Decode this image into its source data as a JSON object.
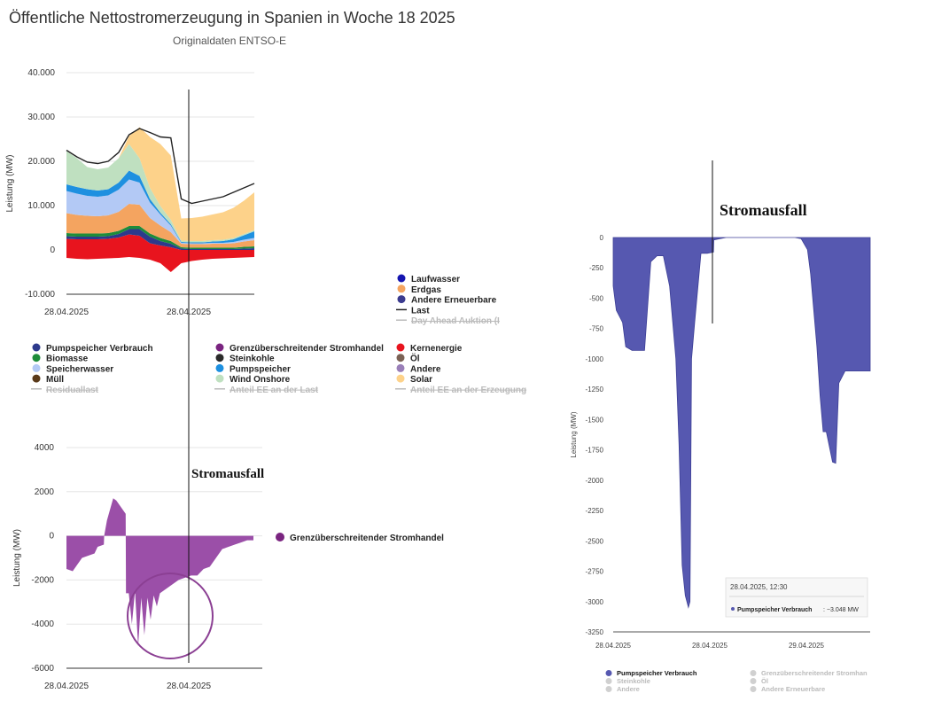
{
  "header": {
    "title": "Öffentliche Nettostromerzeugung in Spanien in Woche 18 2025",
    "subtitle": "Originaldaten ENTSO-E"
  },
  "colors": {
    "laufwasser": "#1515b0",
    "erdgas": "#f4a460",
    "andere_erneuerbare": "#3b3b8f",
    "pumpspeicher_verbrauch": "#2d3a8c",
    "biomasse": "#1e8c3a",
    "speicherwasser": "#b3c9f5",
    "muell": "#5a3a1a",
    "grenz": "#7a2480",
    "steinkohle": "#2a2a2a",
    "pumpspeicher": "#1e90e0",
    "wind_onshore": "#bfe0c0",
    "kernenergie": "#e8141e",
    "oel": "#7b6255",
    "andere": "#9a7fb8",
    "solar": "#fdd28a",
    "trade_fill": "#9b4fa8",
    "pump_fill": "#5658b0"
  },
  "chart_data": [
    {
      "type": "area",
      "name": "generation",
      "ylabel": "Leistung (MW)",
      "ylim": [
        -10000,
        40000
      ],
      "yticks": [
        "40.000",
        "30.000",
        "20.000",
        "10.000",
        "0",
        "-10.000"
      ],
      "xticks": [
        "28.04.2025",
        "28.04.2025"
      ],
      "x_hours": [
        0,
        4,
        8,
        12,
        16,
        20,
        24,
        28,
        32,
        36,
        40,
        44,
        48,
        52,
        56,
        60,
        64,
        68,
        72
      ],
      "load": [
        22500,
        21000,
        19800,
        19500,
        20000,
        22000,
        26000,
        27400,
        26500,
        25500,
        25300,
        11500,
        10500,
        11000,
        11500,
        12000,
        13000,
        14000,
        15000
      ],
      "series": [
        {
          "name": "Kernenergie",
          "color_key": "kernenergie",
          "values": [
            -1800,
            -2000,
            -2100,
            -2000,
            -1900,
            -1800,
            -1600,
            -1800,
            -2200,
            -3000,
            -5000,
            -3000,
            -2500,
            -2200,
            -2000,
            -1900,
            -1800,
            -1700,
            -1600
          ]
        },
        {
          "name": "Kernenergie",
          "color_key": "kernenergie",
          "values": [
            2500,
            2400,
            2400,
            2400,
            2500,
            2800,
            3500,
            3200,
            1500,
            1000,
            600,
            0,
            0,
            0,
            0,
            0,
            0,
            0,
            0
          ]
        },
        {
          "name": "Pumpspeicher Verbrauch",
          "color_key": "pumpspeicher_verbrauch",
          "values": [
            600,
            600,
            600,
            600,
            600,
            800,
            1200,
            1500,
            1500,
            1000,
            800,
            300,
            200,
            200,
            200,
            200,
            200,
            300,
            400
          ]
        },
        {
          "name": "Biomasse",
          "color_key": "biomasse",
          "values": [
            700,
            700,
            700,
            700,
            700,
            700,
            700,
            700,
            700,
            700,
            600,
            300,
            300,
            300,
            300,
            300,
            300,
            400,
            400
          ]
        },
        {
          "name": "Erdgas",
          "color_key": "erdgas",
          "values": [
            4500,
            4200,
            4000,
            3900,
            4000,
            4300,
            5000,
            4800,
            3500,
            2800,
            2000,
            800,
            800,
            800,
            900,
            900,
            1000,
            1200,
            1400
          ]
        },
        {
          "name": "Speicherwasser",
          "color_key": "speicherwasser",
          "values": [
            5000,
            4800,
            4500,
            4400,
            4500,
            5000,
            5500,
            5000,
            3500,
            2500,
            1500,
            200,
            200,
            200,
            200,
            200,
            300,
            400,
            500
          ]
        },
        {
          "name": "Pumpspeicher",
          "color_key": "pumpspeicher",
          "values": [
            1500,
            1500,
            1500,
            1400,
            1400,
            1600,
            2000,
            1500,
            800,
            400,
            300,
            200,
            200,
            200,
            300,
            400,
            600,
            1000,
            1500
          ]
        },
        {
          "name": "Wind Onshore",
          "color_key": "wind_onshore",
          "values": [
            7500,
            6500,
            5000,
            4800,
            4900,
            5500,
            6000,
            4000,
            2500,
            1500,
            1000,
            300,
            300,
            300,
            300,
            300,
            300,
            300,
            300
          ]
        },
        {
          "name": "Solar",
          "color_key": "solar",
          "values": [
            0,
            0,
            0,
            0,
            0,
            0,
            1800,
            7000,
            11500,
            14000,
            14500,
            5000,
            5200,
            5500,
            5800,
            6200,
            6800,
            7500,
            8500
          ]
        }
      ],
      "legend_right": [
        {
          "label": "Laufwasser",
          "type": "dot",
          "color_key": "laufwasser",
          "active": true
        },
        {
          "label": "Erdgas",
          "type": "dot",
          "color_key": "erdgas",
          "active": true
        },
        {
          "label": "Andere Erneuerbare",
          "type": "dot",
          "color_key": "andere_erneuerbare",
          "active": true
        },
        {
          "label": "Last",
          "type": "line",
          "color_key": "steinkohle",
          "active": true
        },
        {
          "label": "Day Ahead Auktion (I",
          "type": "line",
          "color_key": "",
          "active": false
        }
      ],
      "legend_bottom": [
        {
          "label": "Pumpspeicher Verbrauch",
          "type": "dot",
          "color_key": "pumpspeicher_verbrauch",
          "active": true
        },
        {
          "label": "Grenzüberschreitender Stromhandel",
          "type": "dot",
          "color_key": "grenz",
          "active": true
        },
        {
          "label": "Kernenergie",
          "type": "dot",
          "color_key": "kernenergie",
          "active": true
        },
        {
          "label": "Biomasse",
          "type": "dot",
          "color_key": "biomasse",
          "active": true
        },
        {
          "label": "Steinkohle",
          "type": "dot",
          "color_key": "steinkohle",
          "active": true
        },
        {
          "label": "Öl",
          "type": "dot",
          "color_key": "oel",
          "active": true
        },
        {
          "label": "Speicherwasser",
          "type": "dot",
          "color_key": "speicherwasser",
          "active": true
        },
        {
          "label": "Pumpspeicher",
          "type": "dot",
          "color_key": "pumpspeicher",
          "active": true
        },
        {
          "label": "Andere",
          "type": "dot",
          "color_key": "andere",
          "active": true
        },
        {
          "label": "Müll",
          "type": "dot",
          "color_key": "muell",
          "active": true
        },
        {
          "label": "Wind Onshore",
          "type": "dot",
          "color_key": "wind_onshore",
          "active": true
        },
        {
          "label": "Solar",
          "type": "dot",
          "color_key": "solar",
          "active": true
        },
        {
          "label": "Residuallast",
          "type": "line",
          "color_key": "",
          "active": false
        },
        {
          "label": "Anteil EE an der Last",
          "type": "line",
          "color_key": "",
          "active": false
        },
        {
          "label": "Anteil EE an der Erzeugung",
          "type": "line",
          "color_key": "",
          "active": false
        }
      ]
    },
    {
      "type": "area",
      "name": "cross_border_trade",
      "series_name": "Grenzüberschreitender Stromhandel",
      "ylabel": "Leistung (MW)",
      "ylim": [
        -6000,
        4000
      ],
      "yticks": [
        "4000",
        "2000",
        "0",
        "-2000",
        "-4000",
        "-6000"
      ],
      "xticks": [
        "28.04.2025",
        "28.04.2025"
      ],
      "annotation": "Stromausfall",
      "x_hours": [
        0,
        2,
        4,
        5,
        7,
        9,
        10,
        12,
        12.1,
        13,
        15,
        16,
        19,
        19.1,
        20,
        21,
        22,
        23,
        24,
        25,
        26,
        27,
        28,
        29,
        30,
        31,
        32,
        33,
        34,
        36,
        38,
        40,
        42,
        44,
        46,
        48,
        50,
        52,
        54,
        56,
        58,
        60
      ],
      "values": [
        -1500,
        -1600,
        -1200,
        -1000,
        -900,
        -800,
        -500,
        -400,
        0,
        700,
        1700,
        1600,
        1000,
        -2600,
        -2600,
        -4000,
        -2500,
        -5000,
        -2800,
        -4500,
        -2800,
        -3800,
        -2700,
        -3200,
        -2600,
        -2500,
        -2400,
        -2300,
        -2200,
        -2000,
        -1900,
        -1800,
        -1800,
        -1500,
        -1400,
        -1000,
        -600,
        -500,
        -400,
        -300,
        -200,
        -200
      ]
    },
    {
      "type": "area",
      "name": "pumped_storage_consumption",
      "series_name": "Pumpspeicher Verbrauch",
      "ylabel": "Leistung (MW)",
      "ylim": [
        -3250,
        0
      ],
      "yticks": [
        "0",
        "-250",
        "-500",
        "-750",
        "-1000",
        "-1250",
        "-1500",
        "-1750",
        "-2000",
        "-2250",
        "-2500",
        "-2750",
        "-3000",
        "-3250"
      ],
      "xticks": [
        "28.04.2025",
        "28.04.2025",
        "29.04.2025"
      ],
      "annotation": "Stromausfall",
      "tooltip_time": "28.04.2025, 12:30",
      "tooltip_series": "Pumpspeicher Verbrauch",
      "tooltip_value": "−3.048 MW",
      "x_hours": [
        0,
        1,
        2,
        3,
        4,
        6,
        8,
        10,
        12,
        14,
        16,
        18,
        20,
        21,
        22,
        23,
        24,
        24.5,
        25,
        26,
        28,
        30,
        32,
        32.1,
        34,
        36,
        38,
        40,
        50,
        58,
        60,
        62,
        63,
        64,
        65,
        66,
        67,
        68,
        70,
        71,
        72,
        74,
        76,
        78,
        80,
        82
      ],
      "values": [
        -400,
        -600,
        -650,
        -700,
        -900,
        -930,
        -930,
        -930,
        -200,
        -150,
        -150,
        -400,
        -1000,
        -1700,
        -2700,
        -2950,
        -3048,
        -3000,
        -1000,
        -700,
        -130,
        -130,
        -120,
        -20,
        -10,
        0,
        0,
        0,
        0,
        0,
        -10,
        -100,
        -300,
        -600,
        -900,
        -1300,
        -1600,
        -1600,
        -1850,
        -1860,
        -1200,
        -1100,
        -1100,
        -1100,
        -1100,
        -1100
      ],
      "legend": [
        {
          "label": "Pumpspeicher Verbrauch",
          "active": true
        },
        {
          "label": "Grenzüberschreitender Stromhan",
          "active": false
        },
        {
          "label": "Steinkohle",
          "active": false
        },
        {
          "label": "Öl",
          "active": false
        },
        {
          "label": "Andere",
          "active": false
        },
        {
          "label": "Andere Erneuerbare",
          "active": false
        }
      ]
    }
  ]
}
